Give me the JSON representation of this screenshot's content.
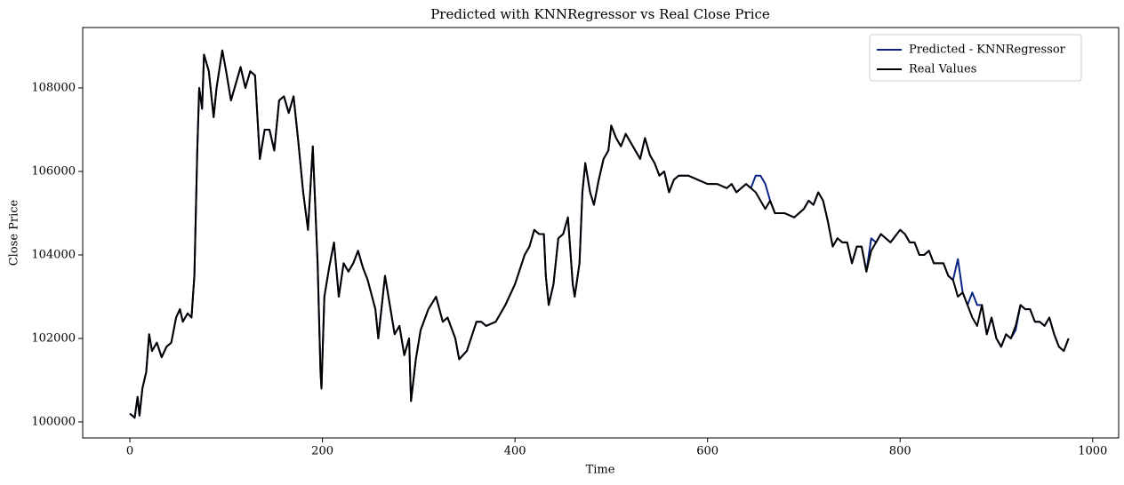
{
  "chart_data": {
    "type": "line",
    "title": "Predicted with KNNRegressor vs Real Close Price",
    "x_label": "Time",
    "y_label": "Close Price",
    "xlim": [
      -49,
      1027
    ],
    "ylim": [
      99617,
      109447
    ],
    "xticks": [
      0,
      200,
      400,
      600,
      800,
      1000
    ],
    "yticks": [
      100000,
      102000,
      104000,
      106000,
      108000
    ],
    "legend": "upper right",
    "x": [
      0,
      5,
      8,
      10,
      13,
      17,
      20,
      23,
      28,
      33,
      38,
      43,
      48,
      52,
      55,
      60,
      64,
      67,
      70,
      72,
      75,
      77,
      82,
      87,
      90,
      96,
      100,
      105,
      110,
      115,
      120,
      125,
      130,
      135,
      140,
      145,
      150,
      155,
      160,
      165,
      170,
      175,
      180,
      185,
      190,
      195,
      198,
      199,
      202,
      207,
      212,
      217,
      222,
      227,
      232,
      237,
      242,
      247,
      255,
      258,
      265,
      270,
      275,
      280,
      285,
      290,
      292,
      297,
      302,
      310,
      318,
      325,
      330,
      338,
      342,
      350,
      360,
      365,
      370,
      380,
      390,
      400,
      410,
      415,
      420,
      425,
      430,
      432,
      435,
      440,
      445,
      450,
      455,
      460,
      462,
      467,
      470,
      473,
      478,
      482,
      487,
      492,
      497,
      500,
      505,
      510,
      515,
      520,
      525,
      530,
      535,
      540,
      545,
      550,
      555,
      560,
      565,
      570,
      580,
      590,
      600,
      610,
      620,
      625,
      630,
      640,
      645,
      650,
      655,
      660,
      665,
      670,
      680,
      690,
      700,
      705,
      710,
      715,
      720,
      725,
      730,
      735,
      740,
      745,
      750,
      755,
      760,
      765,
      770,
      775,
      780,
      790,
      800,
      805,
      810,
      815,
      820,
      825,
      830,
      835,
      840,
      845,
      850,
      855,
      860,
      865,
      870,
      875,
      880,
      885,
      890,
      895,
      900,
      905,
      910,
      915,
      920,
      925,
      930,
      935,
      940,
      945,
      950,
      955,
      960,
      965,
      970,
      975
    ],
    "series": [
      {
        "name": "Predicted - KNNRegressor",
        "color": "#0a2583",
        "values": [
          100200,
          100100,
          100600,
          100150,
          100800,
          101200,
          102100,
          101700,
          101900,
          101550,
          101800,
          101900,
          102500,
          102700,
          102400,
          102600,
          102500,
          103500,
          106500,
          108000,
          107500,
          108800,
          108400,
          107300,
          108000,
          108900,
          108400,
          107700,
          108100,
          108500,
          108000,
          108400,
          108300,
          106300,
          107000,
          107000,
          106500,
          107700,
          107800,
          107400,
          107800,
          106700,
          105500,
          104600,
          106600,
          103800,
          101200,
          100800,
          103000,
          103700,
          104300,
          103000,
          103800,
          103600,
          103800,
          104100,
          103700,
          103400,
          102700,
          102000,
          103500,
          102800,
          102100,
          102300,
          101600,
          102000,
          100500,
          101500,
          102200,
          102700,
          103000,
          102400,
          102500,
          102000,
          101500,
          101700,
          102400,
          102400,
          102300,
          102400,
          102800,
          103300,
          104000,
          104200,
          104600,
          104500,
          104500,
          103500,
          102800,
          103300,
          104400,
          104500,
          104900,
          103300,
          103000,
          103800,
          105500,
          106200,
          105500,
          105200,
          105800,
          106300,
          106500,
          107100,
          106800,
          106600,
          106900,
          106700,
          106500,
          106300,
          106800,
          106400,
          106200,
          105900,
          106000,
          105500,
          105800,
          105900,
          105900,
          105800,
          105700,
          105700,
          105600,
          105700,
          105500,
          105700,
          105600,
          105900,
          105900,
          105700,
          105300,
          105000,
          105000,
          104900,
          105100,
          105300,
          105200,
          105500,
          105300,
          104800,
          104200,
          104400,
          104300,
          104300,
          103800,
          104200,
          104200,
          103600,
          104400,
          104300,
          104500,
          104300,
          104600,
          104500,
          104300,
          104300,
          104000,
          104000,
          104100,
          103800,
          103800,
          103800,
          103500,
          103400,
          103900,
          103100,
          102800,
          103100,
          102800,
          102800,
          102100,
          102500,
          102000,
          101800,
          102100,
          102000,
          102200,
          102800,
          102700,
          102700,
          102400,
          102400,
          102300,
          102500,
          102100,
          101800,
          101700,
          102000
        ]
      },
      {
        "name": "Real Values",
        "color": "#000000",
        "values": [
          100200,
          100100,
          100600,
          100150,
          100800,
          101200,
          102100,
          101700,
          101900,
          101550,
          101800,
          101900,
          102500,
          102700,
          102400,
          102600,
          102500,
          103500,
          106500,
          108000,
          107500,
          108800,
          108400,
          107300,
          108000,
          108900,
          108400,
          107700,
          108100,
          108500,
          108000,
          108400,
          108300,
          106300,
          107000,
          107000,
          106500,
          107700,
          107800,
          107400,
          107800,
          106700,
          105500,
          104600,
          106600,
          103800,
          101200,
          100800,
          103000,
          103700,
          104300,
          103000,
          103800,
          103600,
          103800,
          104100,
          103700,
          103400,
          102700,
          102000,
          103500,
          102800,
          102100,
          102300,
          101600,
          102000,
          100500,
          101500,
          102200,
          102700,
          103000,
          102400,
          102500,
          102000,
          101500,
          101700,
          102400,
          102400,
          102300,
          102400,
          102800,
          103300,
          104000,
          104200,
          104600,
          104500,
          104500,
          103500,
          102800,
          103300,
          104400,
          104500,
          104900,
          103300,
          103000,
          103800,
          105500,
          106200,
          105500,
          105200,
          105800,
          106300,
          106500,
          107100,
          106800,
          106600,
          106900,
          106700,
          106500,
          106300,
          106800,
          106400,
          106200,
          105900,
          106000,
          105500,
          105800,
          105900,
          105900,
          105800,
          105700,
          105700,
          105600,
          105700,
          105500,
          105700,
          105600,
          105500,
          105300,
          105100,
          105300,
          105000,
          105000,
          104900,
          105100,
          105300,
          105200,
          105500,
          105300,
          104800,
          104200,
          104400,
          104300,
          104300,
          103800,
          104200,
          104200,
          103600,
          104100,
          104300,
          104500,
          104300,
          104600,
          104500,
          104300,
          104300,
          104000,
          104000,
          104100,
          103800,
          103800,
          103800,
          103500,
          103400,
          103000,
          103100,
          102800,
          102500,
          102300,
          102800,
          102100,
          102500,
          102000,
          101800,
          102100,
          102000,
          102300,
          102800,
          102700,
          102700,
          102400,
          102400,
          102300,
          102500,
          102100,
          101800,
          101700,
          102000
        ]
      }
    ]
  }
}
